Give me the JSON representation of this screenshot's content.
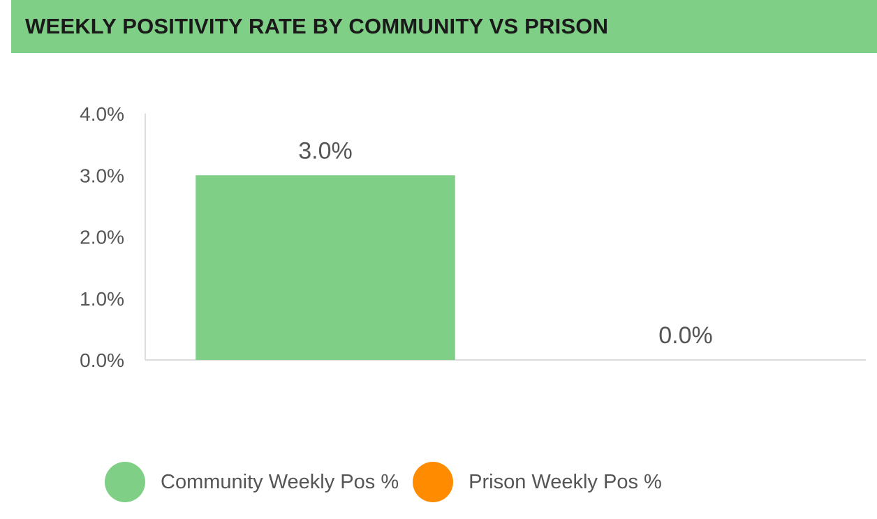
{
  "chart_data": {
    "type": "bar",
    "title": "WEEKLY POSITIVITY RATE BY COMMUNITY VS PRISON",
    "categories": [
      "Community Weekly Pos %",
      "Prison Weekly Pos %"
    ],
    "values": [
      3.0,
      0.0
    ],
    "data_labels": [
      "3.0%",
      "0.0%"
    ],
    "ylim": [
      0,
      4.0
    ],
    "yticks": [
      0,
      1,
      2,
      3,
      4
    ],
    "ytick_labels": [
      "0.0%",
      "1.0%",
      "2.0%",
      "3.0%",
      "4.0%"
    ],
    "xlabel": "",
    "ylabel": "",
    "grid": false,
    "legend_position": "bottom",
    "series": [
      {
        "name": "Community Weekly Pos %",
        "color": "#7fcf86"
      },
      {
        "name": "Prison Weekly Pos %",
        "color": "#ff8c00"
      }
    ]
  },
  "colors": {
    "header_bg": "#7fcf86",
    "axis": "#dddddd"
  }
}
